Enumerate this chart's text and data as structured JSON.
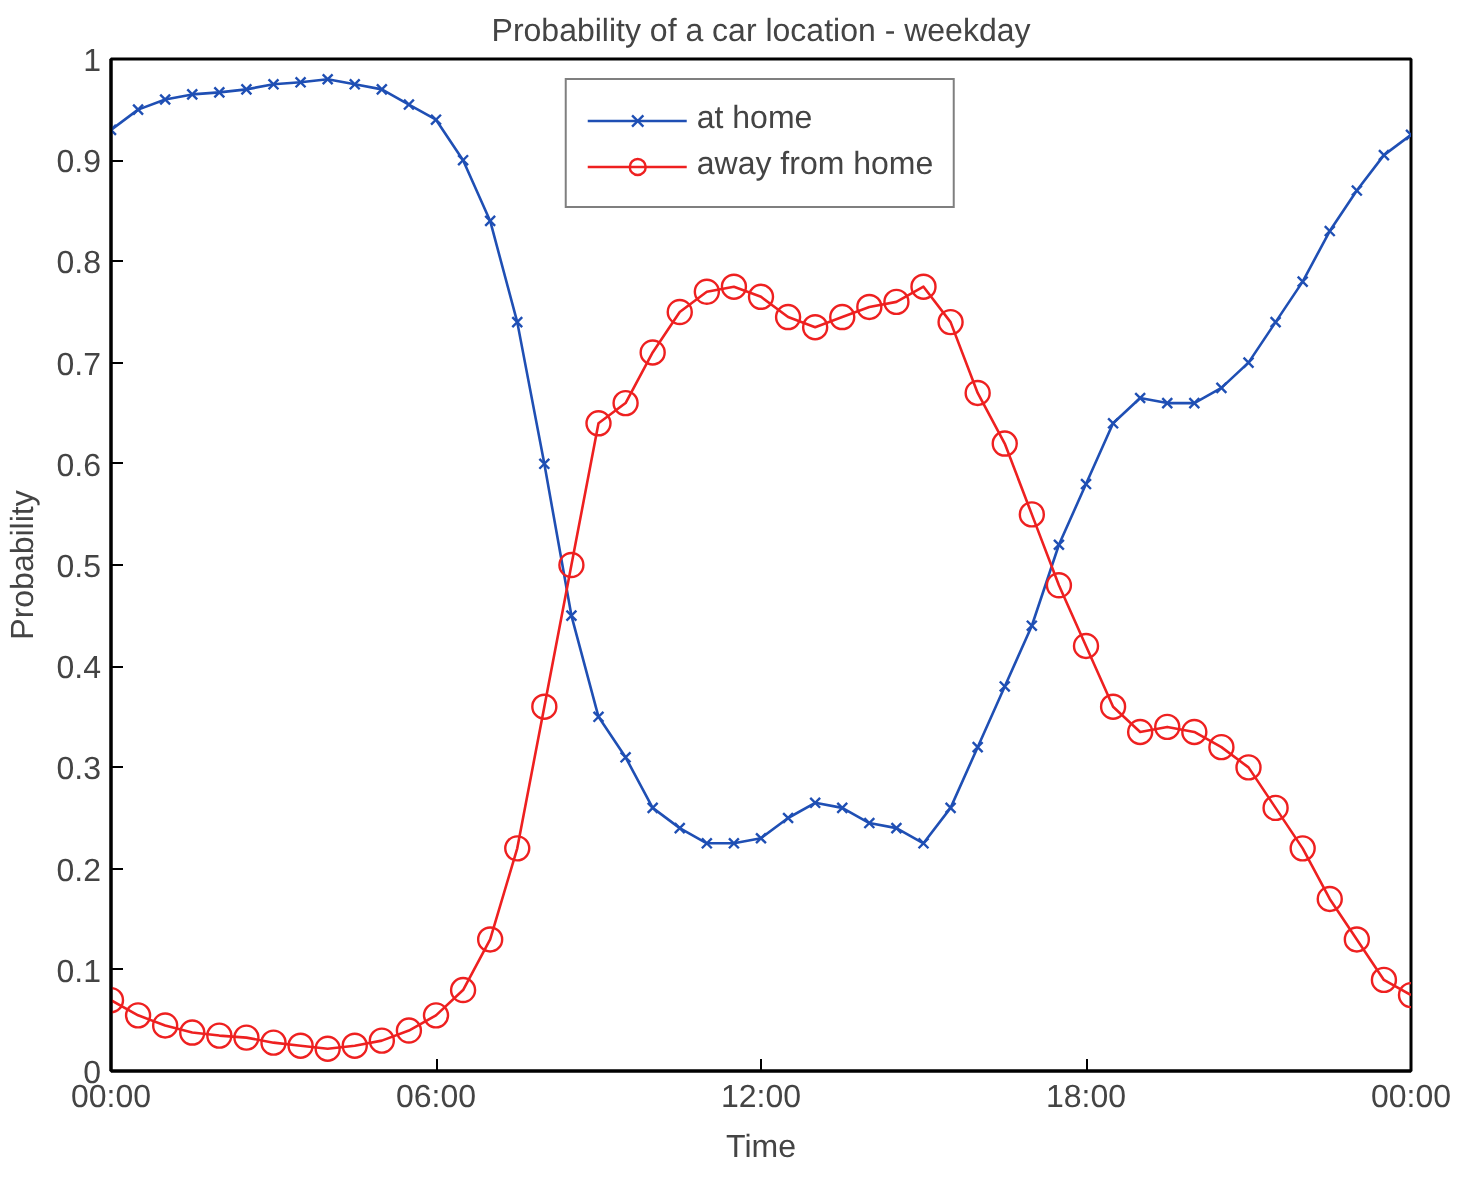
{
  "chart_data": {
    "type": "line",
    "title": "Probability of a car location - weekday",
    "xlabel": "Time",
    "ylabel": "Probability",
    "x": [
      0,
      0.5,
      1,
      1.5,
      2,
      2.5,
      3,
      3.5,
      4,
      4.5,
      5,
      5.5,
      6,
      6.5,
      7,
      7.5,
      8,
      8.5,
      9,
      9.5,
      10,
      10.5,
      11,
      11.5,
      12,
      12.5,
      13,
      13.5,
      14,
      14.5,
      15,
      15.5,
      16,
      16.5,
      17,
      17.5,
      18,
      18.5,
      19,
      19.5,
      20,
      20.5,
      21,
      21.5,
      22,
      22.5,
      23,
      23.5,
      24
    ],
    "series": [
      {
        "name": "at home",
        "color": "#1f4fb4",
        "marker": "cross",
        "values": [
          0.93,
          0.95,
          0.96,
          0.965,
          0.967,
          0.97,
          0.975,
          0.977,
          0.98,
          0.975,
          0.97,
          0.955,
          0.94,
          0.9,
          0.84,
          0.74,
          0.6,
          0.45,
          0.35,
          0.31,
          0.26,
          0.24,
          0.225,
          0.225,
          0.23,
          0.25,
          0.265,
          0.26,
          0.245,
          0.24,
          0.225,
          0.26,
          0.32,
          0.38,
          0.44,
          0.52,
          0.58,
          0.64,
          0.665,
          0.66,
          0.66,
          0.675,
          0.7,
          0.74,
          0.78,
          0.83,
          0.87,
          0.905,
          0.925
        ]
      },
      {
        "name": "away from home",
        "color": "#ee2020",
        "marker": "circle",
        "values": [
          0.07,
          0.055,
          0.045,
          0.038,
          0.035,
          0.033,
          0.028,
          0.025,
          0.022,
          0.025,
          0.03,
          0.04,
          0.055,
          0.08,
          0.13,
          0.22,
          0.36,
          0.5,
          0.64,
          0.66,
          0.71,
          0.75,
          0.77,
          0.775,
          0.765,
          0.745,
          0.735,
          0.745,
          0.755,
          0.76,
          0.775,
          0.74,
          0.67,
          0.62,
          0.55,
          0.48,
          0.42,
          0.36,
          0.335,
          0.34,
          0.335,
          0.32,
          0.3,
          0.26,
          0.22,
          0.17,
          0.13,
          0.09,
          0.075
        ]
      }
    ],
    "xlim": [
      0,
      24
    ],
    "xticks": [
      {
        "value": 0,
        "label": "00:00"
      },
      {
        "value": 6,
        "label": "06:00"
      },
      {
        "value": 12,
        "label": "12:00"
      },
      {
        "value": 18,
        "label": "18:00"
      },
      {
        "value": 24,
        "label": "00:00"
      }
    ],
    "ylim": [
      0,
      1
    ],
    "yticks": [
      0,
      0.1,
      0.2,
      0.3,
      0.4,
      0.5,
      0.6,
      0.7,
      0.8,
      0.9,
      1
    ],
    "grid": false,
    "legend": "top",
    "line_style": "solid"
  }
}
